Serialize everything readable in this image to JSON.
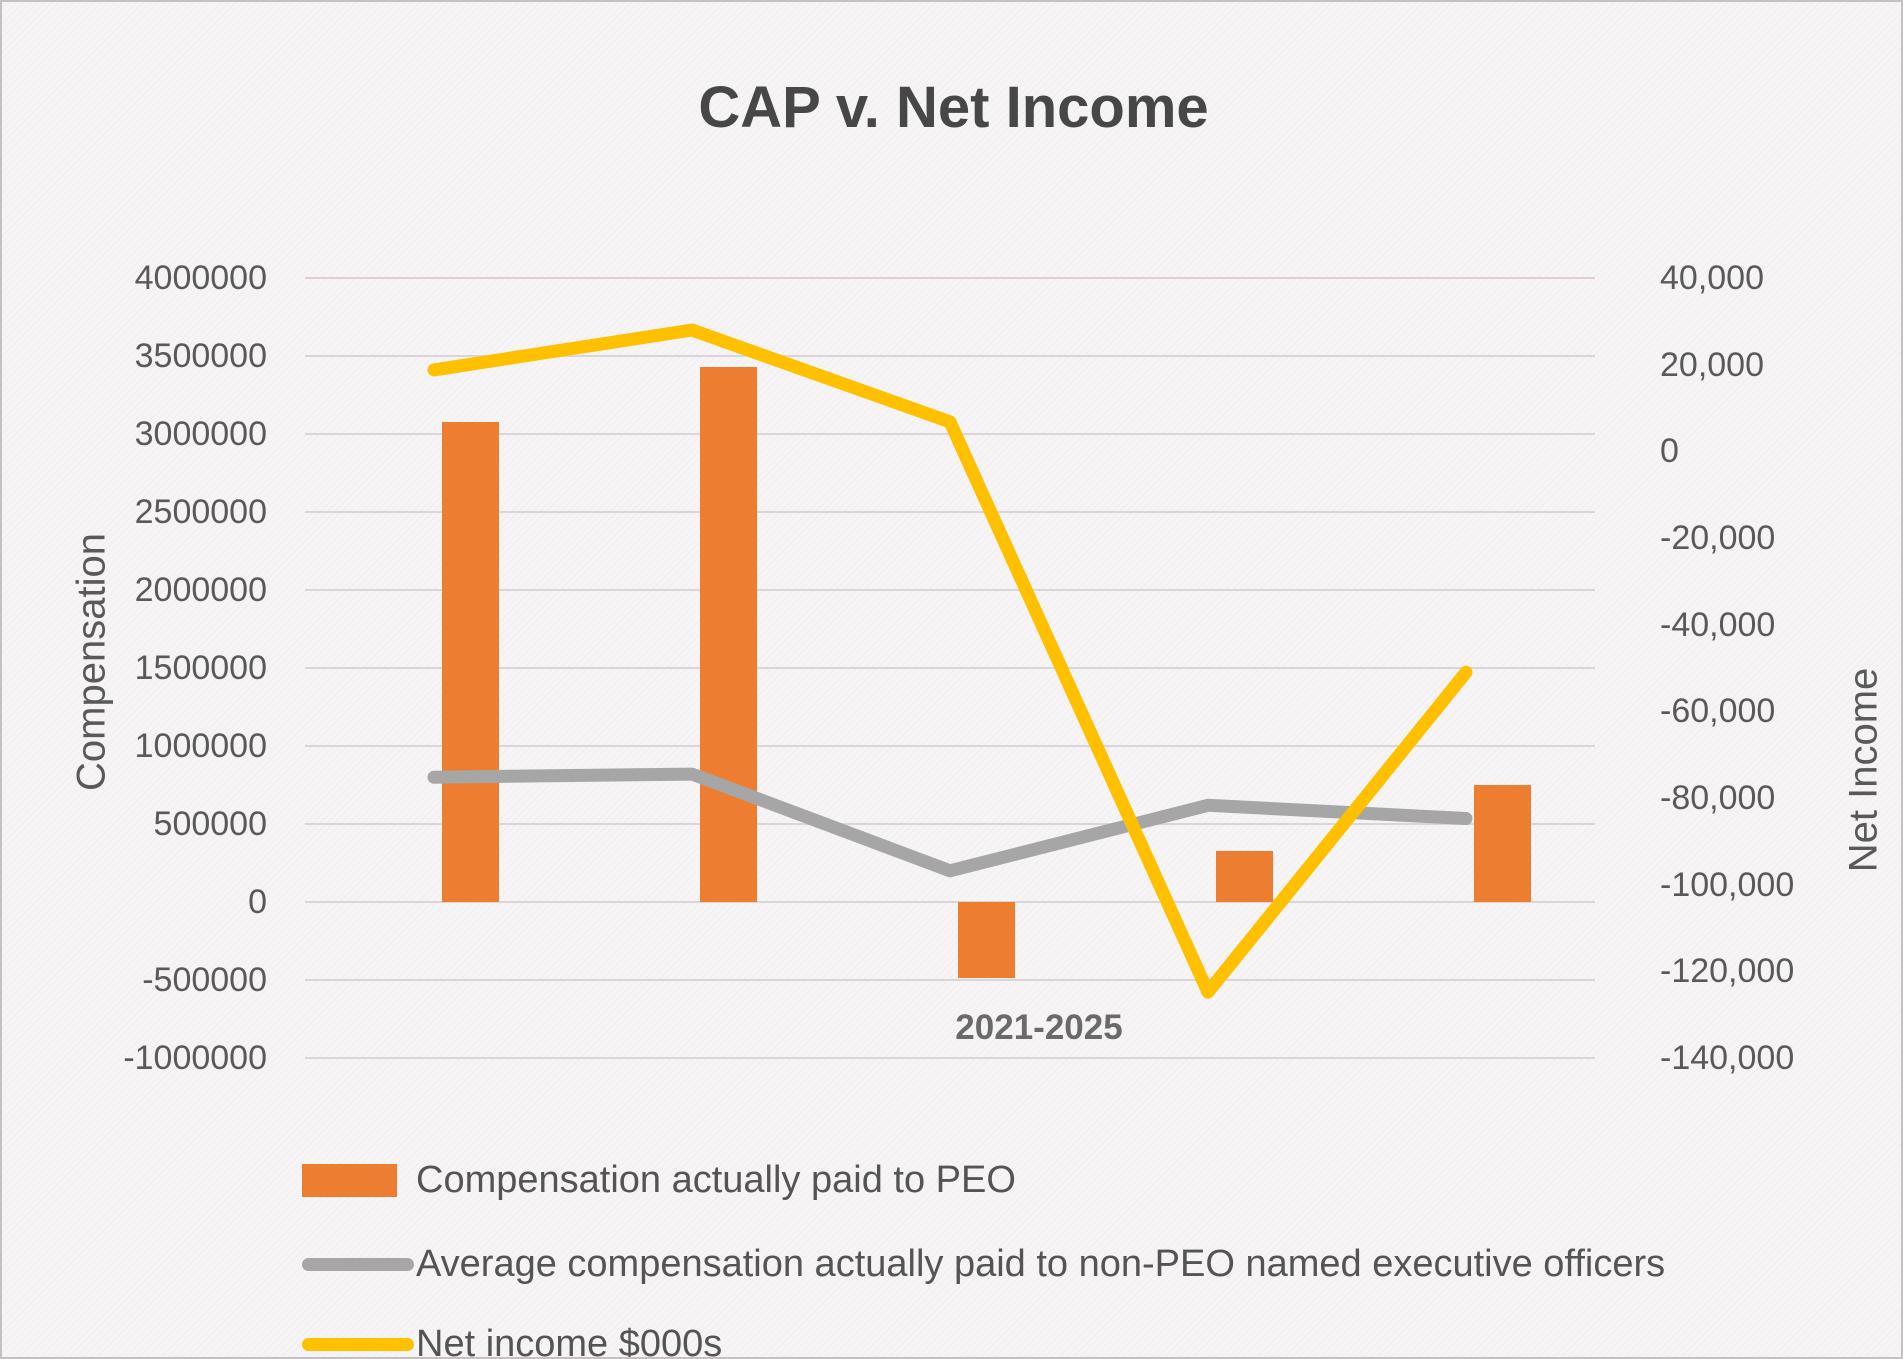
{
  "title": "CAP v. Net Income",
  "x_axis_label": "2021-2025",
  "colors": {
    "bar_orange": "#ED7D31",
    "line_gray": "#A6A6A6",
    "line_yellow": "#FFC000",
    "gridline": "#dbd5d9",
    "gridline_top": "#e4ccd3",
    "background": "#f6f4f5",
    "text": "#595959",
    "title_text": "#474747"
  },
  "chart_data": {
    "type": "bar",
    "subtype": "combo-bar-and-lines",
    "title": "CAP v. Net Income",
    "x_label": "2021-2025",
    "n_points": 5,
    "grid": true,
    "legend_position": "bottom-left",
    "left_axis": {
      "label": "Compensation",
      "min": -1000000,
      "max": 4000000,
      "tick_step": 500000,
      "tick_labels": [
        "4000000",
        "3500000",
        "3000000",
        "2500000",
        "2000000",
        "1500000",
        "1000000",
        "500000",
        "0",
        "-500000",
        "-1000000"
      ]
    },
    "right_axis": {
      "label": "Net Income",
      "min": -140000,
      "max": 40000,
      "tick_step": 20000,
      "tick_labels": [
        "40,000",
        "20,000",
        "0",
        "-20,000",
        "-40,000",
        "-60,000",
        "-80,000",
        "-100,000",
        "-120,000",
        "-140,000"
      ]
    },
    "series": [
      {
        "name": "Compensation actually paid to PEO",
        "type": "bar",
        "axis": "left",
        "color": "#ED7D31",
        "values": [
          3080000,
          3430000,
          -490000,
          330000,
          750000
        ]
      },
      {
        "name": "Average compensation actually paid to non-PEO named executive officers",
        "type": "line",
        "axis": "left",
        "color": "#A6A6A6",
        "values": [
          800000,
          820000,
          200000,
          620000,
          535000
        ]
      },
      {
        "name": "Net income $000s",
        "type": "line",
        "axis": "right",
        "color": "#FFC000",
        "values": [
          18800,
          28000,
          6800,
          -124800,
          -51000
        ]
      }
    ]
  }
}
